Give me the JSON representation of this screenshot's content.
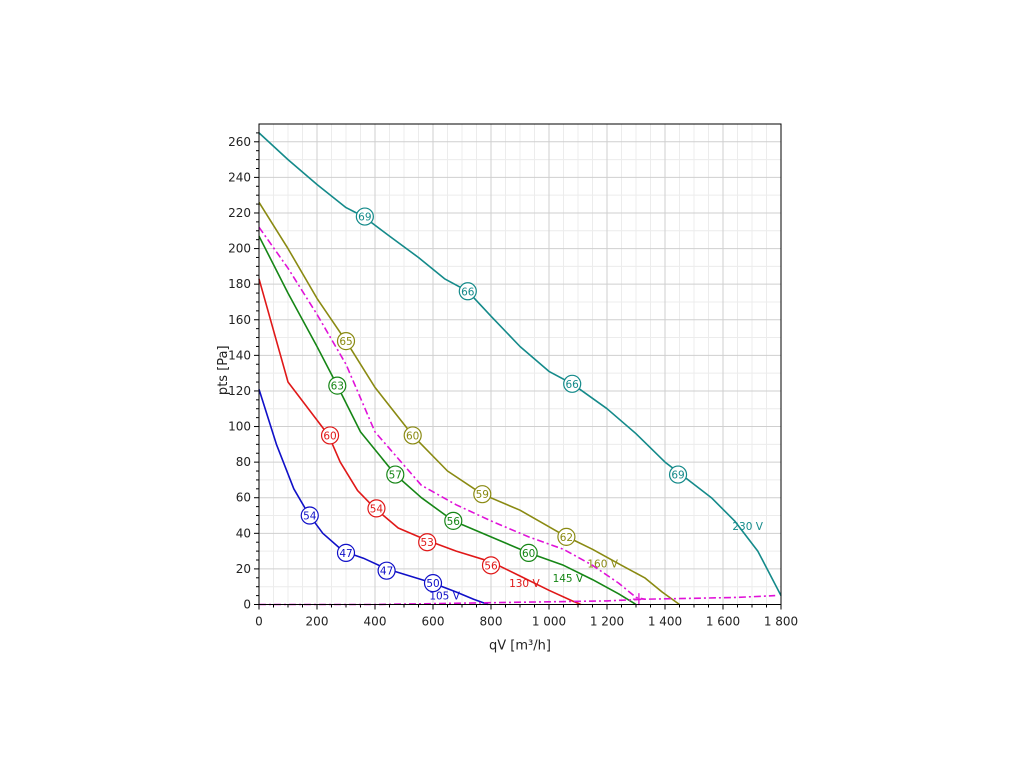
{
  "chart_data": {
    "type": "line",
    "xlabel": "qV [m³/h]",
    "ylabel": "pts [Pa]",
    "xlim": [
      0,
      1800
    ],
    "ylim": [
      0,
      270
    ],
    "x_ticks": [
      0,
      200,
      400,
      600,
      800,
      1000,
      1200,
      1400,
      1600,
      1800
    ],
    "x_tick_labels": [
      "0",
      "200",
      "400",
      "600",
      "800",
      "1 000",
      "1 200",
      "1 400",
      "1 600",
      "1 800"
    ],
    "y_ticks": [
      0,
      20,
      40,
      60,
      80,
      100,
      120,
      140,
      160,
      180,
      200,
      220,
      240,
      260
    ],
    "y_tick_labels": [
      "0",
      "20",
      "40",
      "60",
      "80",
      "100",
      "120",
      "140",
      "160",
      "180",
      "200",
      "220",
      "240",
      "260"
    ],
    "grid": true,
    "series": [
      {
        "name": "105 V",
        "color": "#1010c8",
        "dash": "solid",
        "label_at": [
          640,
          5
        ],
        "points": [
          [
            0,
            121
          ],
          [
            60,
            90
          ],
          [
            120,
            65
          ],
          [
            170,
            51
          ],
          [
            220,
            40
          ],
          [
            290,
            30
          ],
          [
            360,
            26
          ],
          [
            440,
            20
          ],
          [
            520,
            16
          ],
          [
            600,
            12
          ],
          [
            680,
            7
          ],
          [
            740,
            3
          ],
          [
            790,
            0
          ]
        ],
        "markers": [
          {
            "x": 175,
            "y": 50,
            "label": "54"
          },
          {
            "x": 300,
            "y": 29,
            "label": "47"
          },
          {
            "x": 440,
            "y": 19,
            "label": "47"
          },
          {
            "x": 600,
            "y": 12,
            "label": "50"
          }
        ]
      },
      {
        "name": "130 V",
        "color": "#e01818",
        "dash": "solid",
        "label_at": [
          915,
          12
        ],
        "points": [
          [
            0,
            183
          ],
          [
            100,
            125
          ],
          [
            240,
            95
          ],
          [
            280,
            80
          ],
          [
            340,
            64
          ],
          [
            400,
            54
          ],
          [
            480,
            43
          ],
          [
            580,
            36
          ],
          [
            680,
            30
          ],
          [
            800,
            24
          ],
          [
            900,
            16
          ],
          [
            1000,
            8
          ],
          [
            1080,
            2
          ],
          [
            1110,
            0
          ]
        ],
        "markers": [
          {
            "x": 245,
            "y": 95,
            "label": "60"
          },
          {
            "x": 405,
            "y": 54,
            "label": "54"
          },
          {
            "x": 580,
            "y": 35,
            "label": "53"
          },
          {
            "x": 800,
            "y": 22,
            "label": "56"
          }
        ]
      },
      {
        "name": "145 V",
        "color": "#168616",
        "dash": "solid",
        "label_at": [
          1065,
          15
        ],
        "points": [
          [
            0,
            207
          ],
          [
            100,
            175
          ],
          [
            200,
            145
          ],
          [
            270,
            123
          ],
          [
            350,
            97
          ],
          [
            470,
            73
          ],
          [
            560,
            60
          ],
          [
            670,
            47
          ],
          [
            800,
            38
          ],
          [
            930,
            29
          ],
          [
            1050,
            22
          ],
          [
            1150,
            14
          ],
          [
            1240,
            6
          ],
          [
            1300,
            0
          ]
        ],
        "markers": [
          {
            "x": 270,
            "y": 123,
            "label": "63"
          },
          {
            "x": 470,
            "y": 73,
            "label": "57"
          },
          {
            "x": 670,
            "y": 47,
            "label": "56"
          },
          {
            "x": 930,
            "y": 29,
            "label": "60"
          }
        ]
      },
      {
        "name": "160 V",
        "color": "#8a8a12",
        "dash": "solid",
        "label_at": [
          1185,
          23
        ],
        "points": [
          [
            0,
            226
          ],
          [
            100,
            200
          ],
          [
            200,
            172
          ],
          [
            300,
            148
          ],
          [
            400,
            122
          ],
          [
            530,
            95
          ],
          [
            650,
            75
          ],
          [
            770,
            62
          ],
          [
            900,
            53
          ],
          [
            1050,
            39
          ],
          [
            1150,
            31
          ],
          [
            1250,
            22
          ],
          [
            1330,
            15
          ],
          [
            1390,
            7
          ],
          [
            1450,
            0
          ]
        ],
        "markers": [
          {
            "x": 300,
            "y": 148,
            "label": "65"
          },
          {
            "x": 530,
            "y": 95,
            "label": "60"
          },
          {
            "x": 770,
            "y": 62,
            "label": "59"
          },
          {
            "x": 1060,
            "y": 38,
            "label": "62"
          }
        ]
      },
      {
        "name": "230 V",
        "color": "#148a8a",
        "dash": "solid",
        "label_at": [
          1685,
          44
        ],
        "points": [
          [
            0,
            265
          ],
          [
            100,
            250
          ],
          [
            200,
            236
          ],
          [
            300,
            223
          ],
          [
            360,
            218
          ],
          [
            450,
            207
          ],
          [
            550,
            195
          ],
          [
            640,
            183
          ],
          [
            720,
            176
          ],
          [
            800,
            162
          ],
          [
            900,
            145
          ],
          [
            1000,
            131
          ],
          [
            1080,
            124
          ],
          [
            1200,
            110
          ],
          [
            1300,
            96
          ],
          [
            1400,
            80
          ],
          [
            1480,
            70
          ],
          [
            1560,
            60
          ],
          [
            1640,
            47
          ],
          [
            1720,
            30
          ],
          [
            1800,
            5
          ]
        ],
        "markers": [
          {
            "x": 365,
            "y": 218,
            "label": "69"
          },
          {
            "x": 720,
            "y": 176,
            "label": "66"
          },
          {
            "x": 1080,
            "y": 124,
            "label": "66"
          },
          {
            "x": 1445,
            "y": 73,
            "label": "69"
          }
        ]
      },
      {
        "name": "",
        "color": "#e012d8",
        "dash": "dashdot",
        "points": [
          [
            0,
            212
          ],
          [
            100,
            189
          ],
          [
            200,
            163
          ],
          [
            300,
            135
          ],
          [
            400,
            97
          ],
          [
            480,
            82
          ],
          [
            560,
            67
          ],
          [
            680,
            56
          ],
          [
            800,
            47
          ],
          [
            930,
            38
          ],
          [
            1050,
            31
          ],
          [
            1150,
            22
          ],
          [
            1240,
            12
          ],
          [
            1300,
            4
          ],
          [
            1330,
            3
          ]
        ]
      },
      {
        "name": "",
        "color": "#e012d8",
        "dash": "dashdot",
        "points": [
          [
            0,
            0
          ],
          [
            200,
            0
          ],
          [
            400,
            0
          ],
          [
            600,
            0.5
          ],
          [
            800,
            1
          ],
          [
            1000,
            1.5
          ],
          [
            1200,
            2
          ],
          [
            1330,
            3
          ],
          [
            1500,
            3.5
          ],
          [
            1650,
            4
          ],
          [
            1780,
            5
          ]
        ]
      }
    ]
  }
}
